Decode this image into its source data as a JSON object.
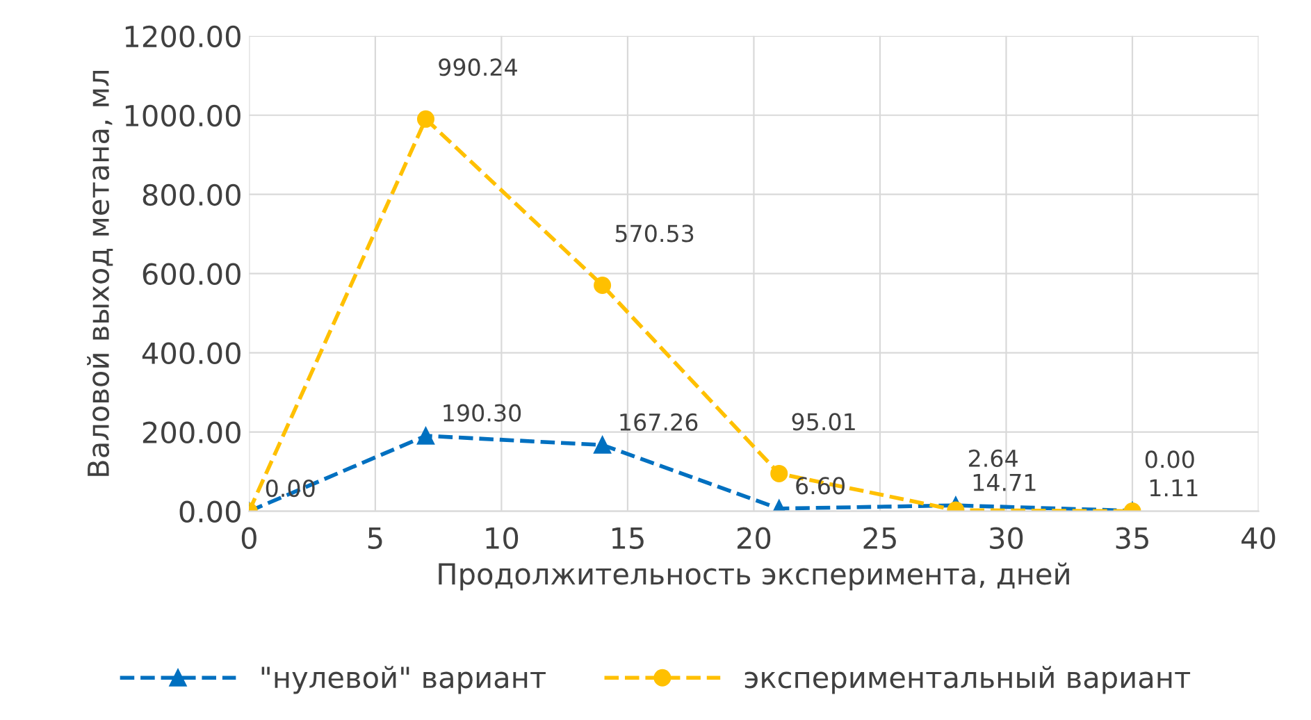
{
  "chart_data": {
    "type": "line",
    "xlabel": "Продолжительность эксперимента, дней",
    "ylabel": "Валовой выход метана, мл",
    "x": [
      0,
      7,
      14,
      21,
      28,
      35
    ],
    "series": [
      {
        "name": "\"нулевой\" вариант",
        "color": "#0070c0",
        "marker": "triangle",
        "values": [
          0.0,
          190.3,
          167.26,
          6.6,
          14.71,
          1.11
        ],
        "value_labels": [
          "0.00",
          "190.30",
          "167.26",
          "6.60",
          "14.71",
          "1.11"
        ]
      },
      {
        "name": "экспериментальный вариант",
        "color": "#ffc000",
        "marker": "circle",
        "values": [
          0.0,
          990.24,
          570.53,
          95.01,
          2.64,
          0.0
        ],
        "value_labels": [
          null,
          "990.24",
          "570.53",
          "95.01",
          "2.64",
          "0.00"
        ]
      }
    ],
    "xlim": [
      0,
      40
    ],
    "xticks": [
      0,
      5,
      10,
      15,
      20,
      25,
      30,
      35,
      40
    ],
    "ylim": [
      0,
      1200
    ],
    "yticks": [
      {
        "value": 0,
        "label": "0.00"
      },
      {
        "value": 200,
        "label": "200.00"
      },
      {
        "value": 400,
        "label": "400.00"
      },
      {
        "value": 600,
        "label": "600.00"
      },
      {
        "value": 800,
        "label": "800.00"
      },
      {
        "value": 1000,
        "label": "1000.00"
      },
      {
        "value": 1200,
        "label": "1200.00"
      }
    ],
    "grid": true,
    "legend": "bottom",
    "line_style": "dashed"
  }
}
